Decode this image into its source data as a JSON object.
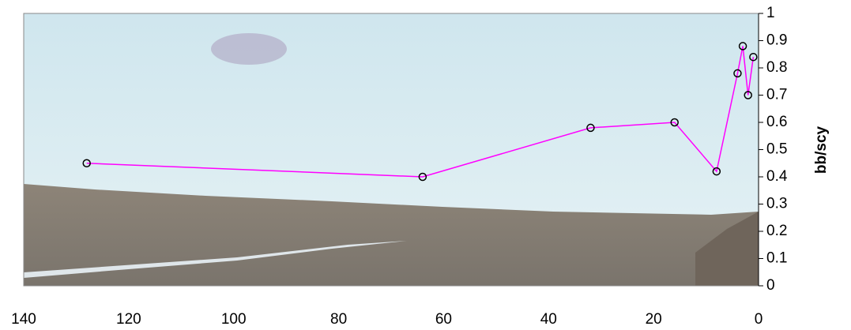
{
  "chart_data": {
    "type": "line",
    "y_label": "bb/scy",
    "x": [
      128,
      64,
      32,
      16,
      8,
      4,
      3,
      2,
      1
    ],
    "series": [
      {
        "color": "#ff00ff",
        "values": [
          0.45,
          0.4,
          0.58,
          0.6,
          0.42,
          0.78,
          0.88,
          0.7,
          0.84
        ]
      }
    ],
    "xlim": [
      140,
      0
    ],
    "xticks": [
      140,
      120,
      100,
      80,
      60,
      40,
      20,
      0
    ],
    "ylim": [
      0,
      1
    ],
    "yticks": [
      0,
      0.1,
      0.2,
      0.3,
      0.4,
      0.5,
      0.6,
      0.7,
      0.8,
      0.9,
      1
    ],
    "y_axis_side": "right",
    "marker": "circle",
    "marker_color": "#000000"
  }
}
